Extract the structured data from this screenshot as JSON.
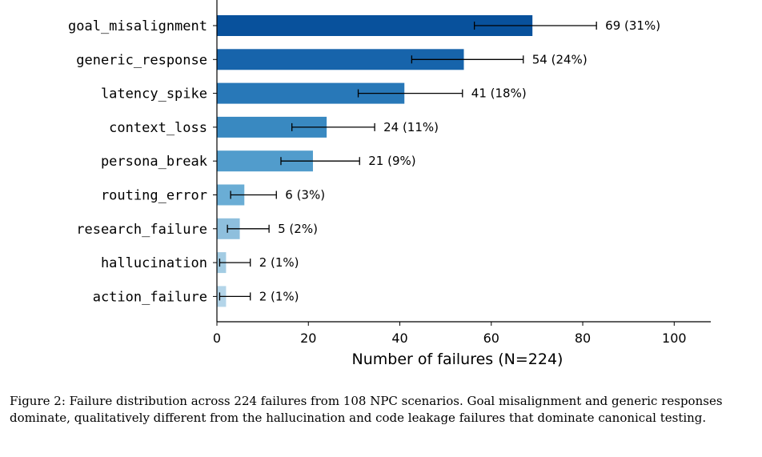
{
  "chart_data": {
    "type": "bar",
    "orientation": "horizontal",
    "categories": [
      "goal_misalignment",
      "generic_response",
      "latency_spike",
      "context_loss",
      "persona_break",
      "routing_error",
      "research_failure",
      "hallucination",
      "action_failure"
    ],
    "values": [
      69,
      54,
      41,
      24,
      21,
      6,
      5,
      2,
      2
    ],
    "error_low": [
      56.3,
      42.6,
      30.9,
      16.4,
      14.0,
      3.0,
      2.3,
      0.6,
      0.6
    ],
    "error_high": [
      83.0,
      67.0,
      53.7,
      34.5,
      31.2,
      13.0,
      11.4,
      7.3,
      7.3
    ],
    "data_labels": [
      "69 (31%)",
      "54 (24%)",
      "41 (18%)",
      "24 (11%)",
      "21 (9%)",
      "6 (3%)",
      "5 (2%)",
      "2 (1%)",
      "2 (1%)"
    ],
    "bar_colors": [
      "#08519c",
      "#1764ab",
      "#2878b8",
      "#3989c1",
      "#519ccc",
      "#6aadd5",
      "#8ebfdd",
      "#a3cce3",
      "#b4d5e9"
    ],
    "xlabel": "Number of failures (N=224)",
    "ylabel": "",
    "xlim": [
      0,
      108
    ],
    "xticks": [
      0,
      20,
      40,
      60,
      80,
      100
    ],
    "grid": false
  },
  "caption": "Figure 2: Failure distribution across 224 failures from 108 NPC scenarios. Goal misalignment and generic responses dominate, qualitatively different from the hallucination and code leakage failures that dominate canonical testing."
}
